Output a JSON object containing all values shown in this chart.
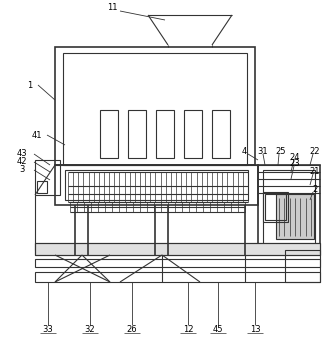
{
  "bg_color": "#ffffff",
  "lc": "#333333",
  "lw": 0.8,
  "tlw": 1.2,
  "fs": 6.0
}
